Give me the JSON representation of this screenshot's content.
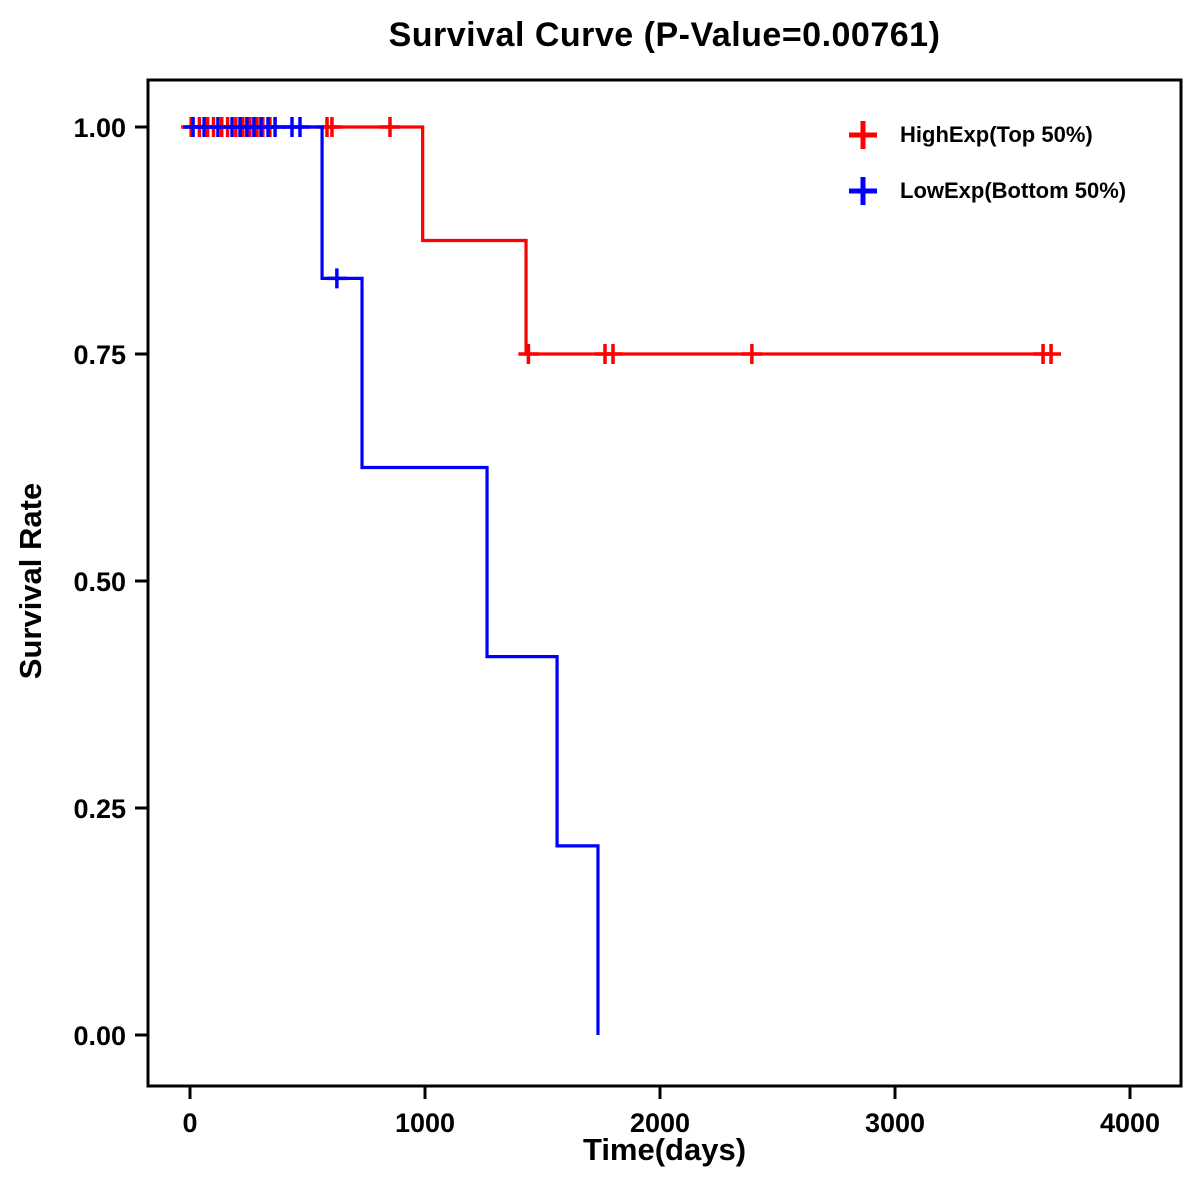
{
  "chart_data": {
    "type": "line",
    "subtype": "kaplan-meier-step-curve",
    "title": "Survival Curve (P-Value=0.00761)",
    "p_value": "0.00761",
    "xlabel": "Time(days)",
    "ylabel": "Survival Rate",
    "x_ticks": [
      0,
      1000,
      2000,
      3000,
      4000
    ],
    "y_ticks": [
      0.0,
      0.25,
      0.5,
      0.75,
      1.0
    ],
    "xlim": [
      -180,
      4220
    ],
    "ylim": [
      -0.055,
      1.06
    ],
    "grid": false,
    "legend_position": "top-right-inside",
    "series": [
      {
        "name": "HighExp(Top 50%)",
        "color": "#FF0000",
        "steps": [
          [
            0,
            1.0
          ],
          [
            990,
            1.0
          ],
          [
            990,
            0.875
          ],
          [
            1430,
            0.875
          ],
          [
            1430,
            0.75
          ],
          [
            3660,
            0.75
          ]
        ],
        "censors": [
          [
            5,
            1.0
          ],
          [
            40,
            1.0
          ],
          [
            75,
            1.0
          ],
          [
            100,
            1.0
          ],
          [
            135,
            1.0
          ],
          [
            160,
            1.0
          ],
          [
            195,
            1.0
          ],
          [
            225,
            1.0
          ],
          [
            255,
            1.0
          ],
          [
            285,
            1.0
          ],
          [
            310,
            1.0
          ],
          [
            340,
            1.0
          ],
          [
            583,
            1.0
          ],
          [
            604,
            1.0
          ],
          [
            851,
            1.0
          ],
          [
            1440,
            0.75
          ],
          [
            1766,
            0.75
          ],
          [
            1800,
            0.75
          ],
          [
            2391,
            0.75
          ],
          [
            3630,
            0.75
          ],
          [
            3664,
            0.75
          ]
        ]
      },
      {
        "name": "LowExp(Bottom 50%)",
        "color": "#0000FF",
        "steps": [
          [
            0,
            1.0
          ],
          [
            562,
            1.0
          ],
          [
            562,
            0.8333
          ],
          [
            732,
            0.8333
          ],
          [
            732,
            0.625
          ],
          [
            1264,
            0.625
          ],
          [
            1264,
            0.4167
          ],
          [
            1562,
            0.4167
          ],
          [
            1562,
            0.2083
          ],
          [
            1736,
            0.2083
          ],
          [
            1736,
            0.0
          ]
        ],
        "censors": [
          [
            13,
            1.0
          ],
          [
            60,
            1.0
          ],
          [
            119,
            1.0
          ],
          [
            179,
            1.0
          ],
          [
            213,
            1.0
          ],
          [
            242,
            1.0
          ],
          [
            272,
            1.0
          ],
          [
            302,
            1.0
          ],
          [
            332,
            1.0
          ],
          [
            362,
            1.0
          ],
          [
            434,
            1.0
          ],
          [
            468,
            1.0
          ],
          [
            625,
            0.8333
          ]
        ]
      }
    ]
  }
}
